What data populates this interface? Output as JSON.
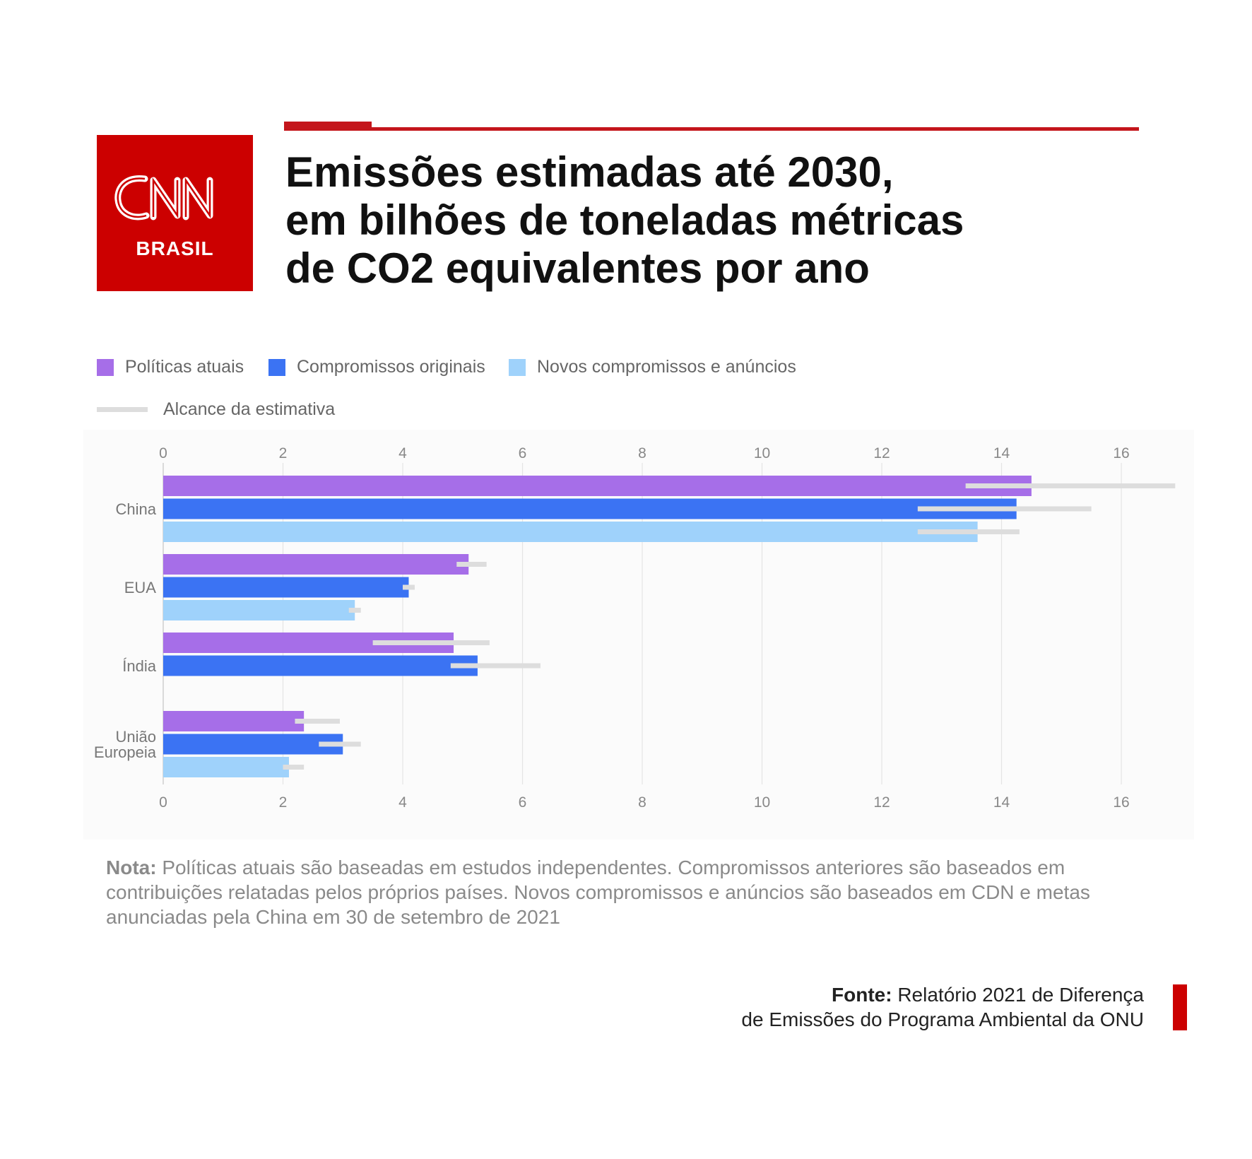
{
  "header": {
    "logo_text": "CNN",
    "logo_sub": "BRASIL",
    "title_lines": [
      "Emissões estimadas até 2030,",
      "em bilhões de toneladas métricas",
      "de CO2 equivalentes por ano"
    ]
  },
  "colors": {
    "brand_red": "#cc0000",
    "series": [
      "#a66ee8",
      "#3b73f3",
      "#9fd2fb"
    ],
    "range": "#dddddd"
  },
  "legend": {
    "items": [
      "Políticas atuais",
      "Compromissos originais",
      "Novos compromissos e anúncios"
    ],
    "range_label": "Alcance da estimativa"
  },
  "chart_data": {
    "type": "bar",
    "orientation": "horizontal",
    "categories": [
      "China",
      "EUA",
      "Índia",
      "União\nEuropeia"
    ],
    "series": [
      {
        "name": "Políticas atuais",
        "values": [
          14.5,
          5.1,
          4.85,
          2.35
        ],
        "range": [
          [
            13.4,
            16.9
          ],
          [
            4.9,
            5.4
          ],
          [
            3.5,
            5.45
          ],
          [
            2.2,
            2.95
          ]
        ]
      },
      {
        "name": "Compromissos originais",
        "values": [
          14.25,
          4.1,
          5.25,
          3.0
        ],
        "range": [
          [
            12.6,
            15.5
          ],
          [
            4.0,
            4.2
          ],
          [
            4.8,
            6.3
          ],
          [
            2.6,
            3.3
          ]
        ]
      },
      {
        "name": "Novos compromissos e anúncios",
        "values": [
          13.6,
          3.2,
          null,
          2.1
        ],
        "range": [
          [
            12.6,
            14.3
          ],
          [
            3.1,
            3.3
          ],
          null,
          [
            2.0,
            2.35
          ]
        ]
      }
    ],
    "xlim": [
      0,
      16
    ],
    "x_ticks": [
      0,
      2,
      4,
      6,
      8,
      10,
      12,
      14,
      16
    ],
    "grid": true,
    "legend_position": "top-left"
  },
  "note": {
    "label": "Nota:",
    "text": " Políticas atuais são baseadas em estudos independentes. Compromissos anteriores são baseados em contribuições relatadas pelos próprios países. Novos compromissos e anúncios são baseados em CDN e metas anunciadas pela China em 30 de setembro de 2021"
  },
  "source": {
    "label": "Fonte:",
    "line1": " Relatório 2021 de Diferença",
    "line2": "de Emissões do Programa Ambiental da ONU"
  }
}
